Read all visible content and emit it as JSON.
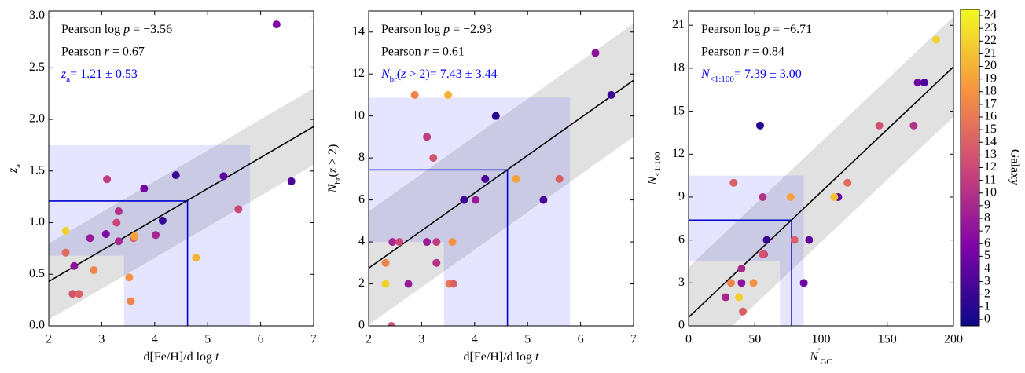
{
  "chart_data": [
    {
      "type": "scatter",
      "xlabel": [
        {
          "t": "d[Fe/H]/d log "
        },
        {
          "t": "t",
          "s": "it"
        }
      ],
      "ylabel": [
        {
          "t": "z",
          "s": "it"
        },
        {
          "t": "a",
          "s": "sub"
        }
      ],
      "annotations": [
        [
          {
            "t": "Pearson log "
          },
          {
            "t": "p",
            "s": "it"
          },
          {
            "t": " = −3.56"
          }
        ],
        [
          {
            "t": "Pearson "
          },
          {
            "t": "r",
            "s": "it"
          },
          {
            "t": " = 0.67"
          }
        ],
        [
          {
            "t": "z",
            "s": "it"
          },
          {
            "t": "a",
            "s": "sub"
          },
          {
            "t": "= 1.21 ± 0.53"
          }
        ]
      ],
      "xlim": [
        2,
        7
      ],
      "ylim": [
        0,
        3.05
      ],
      "xticks": [
        2,
        3,
        4,
        5,
        6,
        7
      ],
      "yticks": [
        {
          "value": 0,
          "label": "0.0"
        },
        0.5,
        {
          "value": 1,
          "label": "1.0"
        },
        1.5,
        {
          "value": 2,
          "label": "2.0"
        },
        2.5,
        {
          "value": 3,
          "label": "3.0"
        }
      ],
      "x": [
        6.3,
        6.58,
        5.3,
        4.4,
        3.8,
        4.15,
        5.58,
        4.02,
        3.1,
        3.32,
        3.28,
        2.78,
        3.08,
        3.32,
        3.6,
        3.62,
        2.32,
        2.32,
        2.48,
        2.85,
        2.45,
        2.57,
        3.52,
        3.55,
        4.78
      ],
      "values": [
        2.92,
        1.4,
        1.45,
        1.46,
        1.33,
        1.02,
        1.13,
        0.88,
        1.42,
        1.11,
        1.0,
        0.85,
        0.89,
        0.82,
        0.85,
        0.87,
        0.92,
        0.71,
        0.58,
        0.54,
        0.31,
        0.31,
        0.47,
        0.24,
        0.66
      ],
      "galaxy": [
        6,
        3,
        4,
        2,
        5,
        2,
        12,
        9,
        11,
        10,
        12,
        8,
        6,
        9,
        14,
        19,
        22,
        15,
        7,
        17,
        13,
        14,
        18,
        17,
        20
      ],
      "fit": {
        "x": [
          2,
          7
        ],
        "y": [
          0.43,
          1.93
        ]
      },
      "band_halfwidth": 0.37,
      "median": {
        "x": 4.62,
        "y": 1.21,
        "x_range": [
          3.42,
          5.8
        ],
        "y_range": [
          0.68,
          1.75
        ]
      }
    },
    {
      "type": "scatter",
      "xlabel": [
        {
          "t": "d[Fe/H]/d log "
        },
        {
          "t": "t",
          "s": "it"
        }
      ],
      "ylabel": [
        {
          "t": "N",
          "s": "it"
        },
        {
          "t": "br",
          "s": "sub"
        },
        {
          "t": "("
        },
        {
          "t": "z",
          "s": "it"
        },
        {
          "t": " > 2)"
        }
      ],
      "annotations": [
        [
          {
            "t": "Pearson log "
          },
          {
            "t": "p",
            "s": "it"
          },
          {
            "t": " = −2.93"
          }
        ],
        [
          {
            "t": "Pearson "
          },
          {
            "t": "r",
            "s": "it"
          },
          {
            "t": " = 0.61"
          }
        ],
        [
          {
            "t": "N",
            "s": "it"
          },
          {
            "t": "br",
            "s": "sub"
          },
          {
            "t": "("
          },
          {
            "t": "z",
            "s": "it"
          },
          {
            "t": " > 2)= 7.43 ± 3.44"
          }
        ]
      ],
      "xlim": [
        2,
        7
      ],
      "ylim": [
        0,
        15
      ],
      "xticks": [
        2,
        3,
        4,
        5,
        6,
        7
      ],
      "yticks": [
        0,
        2,
        4,
        6,
        8,
        10,
        12,
        14
      ],
      "x": [
        6.28,
        6.58,
        4.4,
        2.87,
        3.5,
        3.1,
        3.22,
        4.2,
        4.78,
        5.6,
        3.8,
        4.02,
        5.3,
        2.45,
        2.58,
        3.1,
        3.28,
        3.58,
        3.28,
        2.32,
        2.75,
        2.32,
        3.52,
        3.6,
        2.43
      ],
      "values": [
        13,
        11,
        10,
        11,
        11,
        9,
        8,
        7,
        7,
        7,
        6,
        6,
        6,
        4,
        4,
        4,
        4,
        4,
        3,
        3,
        2,
        2,
        2,
        2,
        0
      ],
      "galaxy": [
        7,
        2,
        1,
        17,
        20,
        11,
        13,
        3,
        19,
        14,
        2,
        8,
        3,
        9,
        12,
        8,
        11,
        18,
        10,
        17,
        8,
        22,
        16,
        14,
        13
      ],
      "fit": {
        "x": [
          2,
          7
        ],
        "y": [
          2.75,
          11.7
        ]
      },
      "band_halfwidth": 2.7,
      "median": {
        "x": 4.62,
        "y": 7.43,
        "x_range": [
          3.42,
          5.8
        ],
        "y_range": [
          4.0,
          10.87
        ]
      }
    },
    {
      "type": "scatter",
      "xlabel": [
        {
          "t": "N",
          "s": "it"
        },
        {
          "t": "′",
          "s": "sup"
        },
        {
          "t": "GC",
          "s": "sub"
        }
      ],
      "ylabel": [
        {
          "t": "N",
          "s": "it"
        },
        {
          "t": "<1:100",
          "s": "sub"
        }
      ],
      "annotations": [
        [
          {
            "t": "Pearson log "
          },
          {
            "t": "p",
            "s": "it"
          },
          {
            "t": " = −6.71"
          }
        ],
        [
          {
            "t": "Pearson "
          },
          {
            "t": "r",
            "s": "it"
          },
          {
            "t": " = 0.84"
          }
        ],
        [
          {
            "t": "N",
            "s": "it"
          },
          {
            "t": "<1:100",
            "s": "sub"
          },
          {
            "t": "= 7.39 ± 3.00"
          }
        ]
      ],
      "xlim": [
        0,
        200
      ],
      "ylim": [
        0,
        22
      ],
      "xticks": [
        0,
        50,
        100,
        150,
        200
      ],
      "yticks": [
        0,
        3,
        6,
        9,
        12,
        15,
        18,
        21
      ],
      "x": [
        187,
        173,
        178,
        144,
        170,
        54,
        120,
        113,
        110,
        34,
        56,
        77,
        59,
        80,
        91,
        57,
        56,
        40,
        87,
        32,
        40,
        49,
        28,
        38,
        41
      ],
      "values": [
        20,
        17,
        17,
        14,
        14,
        14,
        10,
        9,
        9,
        10,
        9,
        9,
        6,
        6,
        6,
        5,
        5,
        4,
        3,
        3,
        3,
        3,
        2,
        2,
        1
      ],
      "galaxy": [
        22,
        5,
        3,
        13,
        10,
        1,
        15,
        4,
        21,
        14,
        10,
        19,
        2,
        14,
        4,
        11,
        13,
        9,
        5,
        17,
        7,
        18,
        9,
        22,
        14
      ],
      "fit": {
        "x": [
          0,
          200
        ],
        "y": [
          0.6,
          18.1
        ]
      },
      "band_halfwidth": 3.5,
      "median": {
        "x": 77.8,
        "y": 7.39,
        "x_range": [
          69,
          87
        ],
        "y_range": [
          4.5,
          10.5
        ]
      }
    },
    {
      "type": "colorbar",
      "label": "Galaxy",
      "colormap": "plasma",
      "ylim": [
        -0.5,
        24.5
      ],
      "yticks": [
        0,
        1,
        2,
        3,
        4,
        5,
        6,
        7,
        8,
        9,
        10,
        11,
        12,
        13,
        14,
        15,
        16,
        17,
        18,
        19,
        20,
        21,
        22,
        23,
        24
      ]
    }
  ]
}
